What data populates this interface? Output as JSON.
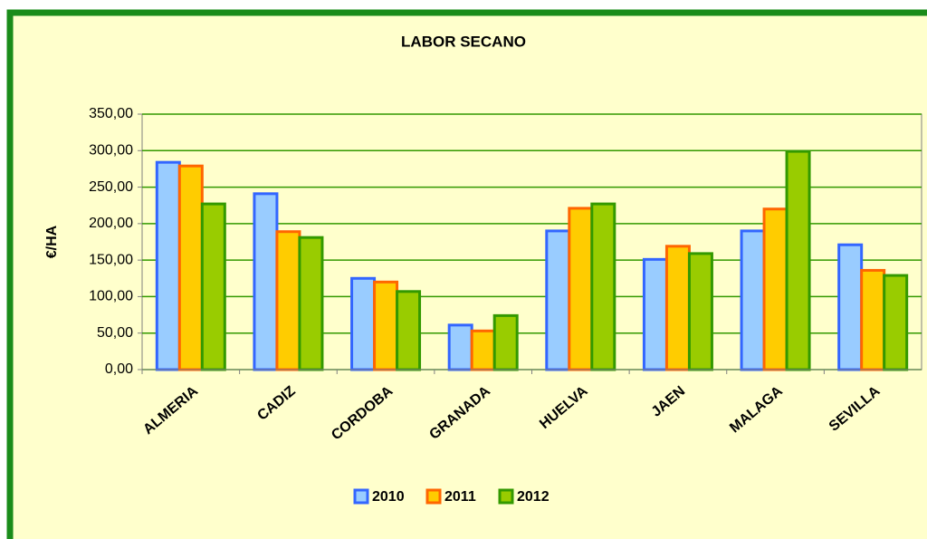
{
  "chart_data": {
    "type": "bar",
    "title": "LABOR SECANO",
    "y_label": "€/HA",
    "categories": [
      "ALMERIA",
      "CADIZ",
      "CORDOBA",
      "GRANADA",
      "HUELVA",
      "JAEN",
      "MALAGA",
      "SEVILLA"
    ],
    "series": [
      {
        "name": "2010",
        "color": "#99ccff",
        "edgecolor": "#3366ff",
        "values": [
          284,
          241,
          125,
          61,
          190,
          151,
          190,
          171
        ]
      },
      {
        "name": "2011",
        "color": "#ffcc00",
        "edgecolor": "#ff6600",
        "values": [
          279,
          189,
          120,
          53,
          221,
          169,
          220,
          136
        ]
      },
      {
        "name": "2012",
        "color": "#99cc00",
        "edgecolor": "#339900",
        "values": [
          227,
          181,
          107,
          74,
          227,
          159,
          299,
          129
        ]
      }
    ],
    "ylim": [
      0,
      350
    ],
    "yticks": [
      {
        "value": 0,
        "label": "0,00"
      },
      {
        "value": 50,
        "label": "50,00"
      },
      {
        "value": 100,
        "label": "100,00"
      },
      {
        "value": 150,
        "label": "150,00"
      },
      {
        "value": 200,
        "label": "200,00"
      },
      {
        "value": 250,
        "label": "250,00"
      },
      {
        "value": 300,
        "label": "300,00"
      },
      {
        "value": 350,
        "label": "350,00"
      }
    ],
    "grid": true,
    "grid_color": "#339900",
    "legend": "bottom"
  }
}
